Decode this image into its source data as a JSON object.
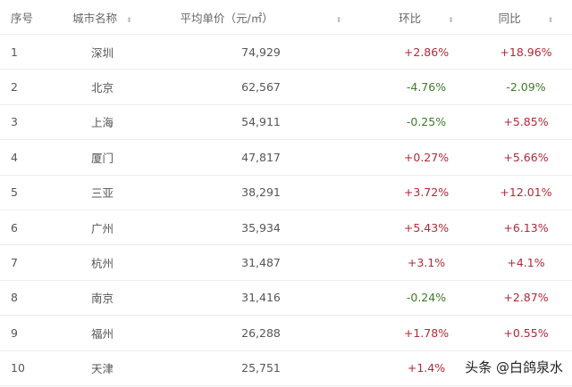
{
  "headers": [
    "序号",
    "城市名称",
    "平均单价（元/㎡）",
    "环比",
    "同比"
  ],
  "sort_icon": "⬍",
  "colors": {
    "positive": "#b02a37",
    "negative": "#3d7a2a"
  },
  "rows": [
    {
      "rank": "1",
      "city": "深圳",
      "price": "74,929",
      "mom": "+2.86%",
      "yoy": "+18.96%"
    },
    {
      "rank": "2",
      "city": "北京",
      "price": "62,567",
      "mom": "-4.76%",
      "yoy": "-2.09%"
    },
    {
      "rank": "3",
      "city": "上海",
      "price": "54,911",
      "mom": "-0.25%",
      "yoy": "+5.85%"
    },
    {
      "rank": "4",
      "city": "厦门",
      "price": "47,817",
      "mom": "+0.27%",
      "yoy": "+5.66%"
    },
    {
      "rank": "5",
      "city": "三亚",
      "price": "38,291",
      "mom": "+3.72%",
      "yoy": "+12.01%"
    },
    {
      "rank": "6",
      "city": "广州",
      "price": "35,934",
      "mom": "+5.43%",
      "yoy": "+6.13%"
    },
    {
      "rank": "7",
      "city": "杭州",
      "price": "31,487",
      "mom": "+3.1%",
      "yoy": "+4.1%"
    },
    {
      "rank": "8",
      "city": "南京",
      "price": "31,416",
      "mom": "-0.24%",
      "yoy": "+2.87%"
    },
    {
      "rank": "9",
      "city": "福州",
      "price": "26,288",
      "mom": "+1.78%",
      "yoy": "+0.55%"
    },
    {
      "rank": "10",
      "city": "天津",
      "price": "25,751",
      "mom": "+1.4%",
      "yoy": ""
    }
  ],
  "watermark": "头条 @白鸽泉水"
}
